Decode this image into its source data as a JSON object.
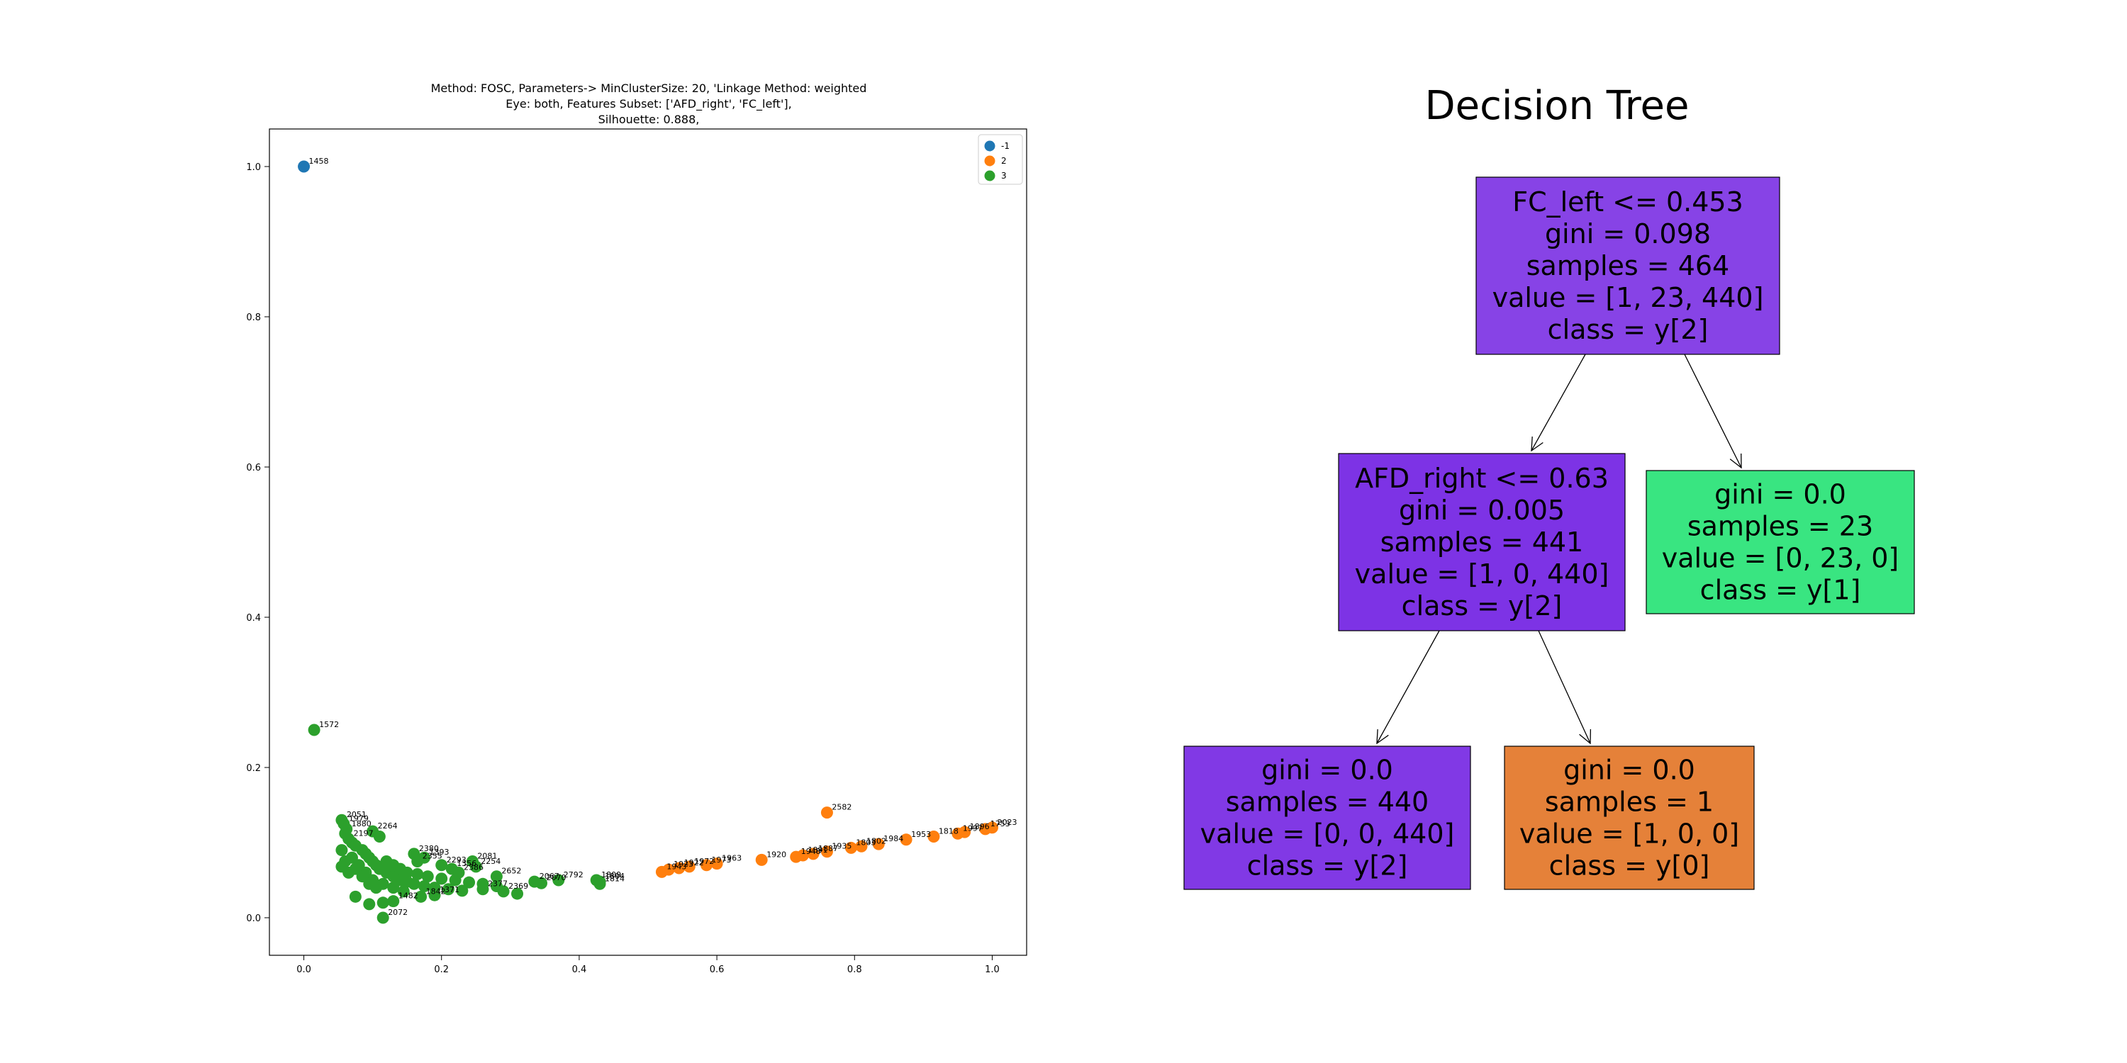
{
  "chart_data": [
    {
      "type": "scatter",
      "title_lines": [
        "Method: FOSC, Parameters-> MinClusterSize: 20, 'Linkage Method: weighted",
        "Eye: both, Features Subset: ['AFD_right', 'FC_left'],",
        "Silhouette: 0.888,"
      ],
      "xlabel": "",
      "ylabel": "",
      "xlim": [
        -0.05,
        1.05
      ],
      "ylim": [
        -0.05,
        1.05
      ],
      "xticks": [
        0.0,
        0.2,
        0.4,
        0.6,
        0.8,
        1.0
      ],
      "yticks": [
        0.0,
        0.2,
        0.4,
        0.6,
        0.8,
        1.0
      ],
      "xtick_labels": [
        "0.0",
        "0.2",
        "0.4",
        "0.6",
        "0.8",
        "1.0"
      ],
      "ytick_labels": [
        "0.0",
        "0.2",
        "0.4",
        "0.6",
        "0.8",
        "1.0"
      ],
      "grid": false,
      "legend_position": "top-right",
      "legend": [
        {
          "label": "-1",
          "color": "#1f77b4"
        },
        {
          "label": "2",
          "color": "#ff7f0e"
        },
        {
          "label": "3",
          "color": "#2ca02c"
        }
      ],
      "series": [
        {
          "name": "-1",
          "color": "#1f77b4",
          "points": [
            {
              "x": 0.0,
              "y": 1.0,
              "label": "1458"
            }
          ]
        },
        {
          "name": "2",
          "color": "#ff7f0e",
          "points": [
            {
              "x": 0.76,
              "y": 0.14,
              "label": "2582"
            },
            {
              "x": 1.0,
              "y": 0.12,
              "label": "2023"
            },
            {
              "x": 0.99,
              "y": 0.118,
              "label": "1753"
            },
            {
              "x": 0.96,
              "y": 0.114,
              "label": "1896"
            },
            {
              "x": 0.95,
              "y": 0.112,
              "label": "1997"
            },
            {
              "x": 0.915,
              "y": 0.108,
              "label": "1818"
            },
            {
              "x": 0.875,
              "y": 0.104,
              "label": "1953"
            },
            {
              "x": 0.835,
              "y": 0.098,
              "label": "1984"
            },
            {
              "x": 0.81,
              "y": 0.095,
              "label": "1802"
            },
            {
              "x": 0.795,
              "y": 0.093,
              "label": "1803"
            },
            {
              "x": 0.76,
              "y": 0.088,
              "label": "1935"
            },
            {
              "x": 0.74,
              "y": 0.085,
              "label": "1887"
            },
            {
              "x": 0.725,
              "y": 0.083,
              "label": "1891"
            },
            {
              "x": 0.715,
              "y": 0.081,
              "label": "1948"
            },
            {
              "x": 0.665,
              "y": 0.077,
              "label": "1920"
            },
            {
              "x": 0.6,
              "y": 0.072,
              "label": "1963"
            },
            {
              "x": 0.585,
              "y": 0.07,
              "label": "1973"
            },
            {
              "x": 0.56,
              "y": 0.068,
              "label": "1972"
            },
            {
              "x": 0.545,
              "y": 0.066,
              "label": "1922"
            },
            {
              "x": 0.53,
              "y": 0.064,
              "label": "1923"
            },
            {
              "x": 0.52,
              "y": 0.061,
              "label": "1943"
            }
          ]
        },
        {
          "name": "3",
          "color": "#2ca02c",
          "points": [
            {
              "x": 0.015,
              "y": 0.25,
              "label": "1572"
            },
            {
              "x": 0.055,
              "y": 0.13,
              "label": "2051"
            },
            {
              "x": 0.058,
              "y": 0.125,
              "label": "1979"
            },
            {
              "x": 0.062,
              "y": 0.118,
              "label": "1880"
            },
            {
              "x": 0.06,
              "y": 0.112,
              "label": ""
            },
            {
              "x": 0.065,
              "y": 0.105,
              "label": "2197"
            },
            {
              "x": 0.07,
              "y": 0.1,
              "label": ""
            },
            {
              "x": 0.075,
              "y": 0.096,
              "label": ""
            },
            {
              "x": 0.1,
              "y": 0.115,
              "label": "2264"
            },
            {
              "x": 0.11,
              "y": 0.108,
              "label": ""
            },
            {
              "x": 0.085,
              "y": 0.09,
              "label": ""
            },
            {
              "x": 0.09,
              "y": 0.085,
              "label": ""
            },
            {
              "x": 0.095,
              "y": 0.08,
              "label": ""
            },
            {
              "x": 0.1,
              "y": 0.075,
              "label": ""
            },
            {
              "x": 0.105,
              "y": 0.07,
              "label": ""
            },
            {
              "x": 0.11,
              "y": 0.065,
              "label": ""
            },
            {
              "x": 0.12,
              "y": 0.06,
              "label": ""
            },
            {
              "x": 0.13,
              "y": 0.055,
              "label": ""
            },
            {
              "x": 0.14,
              "y": 0.05,
              "label": ""
            },
            {
              "x": 0.15,
              "y": 0.048,
              "label": ""
            },
            {
              "x": 0.16,
              "y": 0.045,
              "label": ""
            },
            {
              "x": 0.175,
              "y": 0.042,
              "label": ""
            },
            {
              "x": 0.19,
              "y": 0.04,
              "label": ""
            },
            {
              "x": 0.21,
              "y": 0.038,
              "label": ""
            },
            {
              "x": 0.23,
              "y": 0.036,
              "label": ""
            },
            {
              "x": 0.08,
              "y": 0.07,
              "label": ""
            },
            {
              "x": 0.09,
              "y": 0.06,
              "label": ""
            },
            {
              "x": 0.1,
              "y": 0.05,
              "label": ""
            },
            {
              "x": 0.115,
              "y": 0.045,
              "label": ""
            },
            {
              "x": 0.13,
              "y": 0.04,
              "label": ""
            },
            {
              "x": 0.145,
              "y": 0.035,
              "label": ""
            },
            {
              "x": 0.07,
              "y": 0.08,
              "label": ""
            },
            {
              "x": 0.075,
              "y": 0.065,
              "label": ""
            },
            {
              "x": 0.085,
              "y": 0.055,
              "label": ""
            },
            {
              "x": 0.095,
              "y": 0.045,
              "label": ""
            },
            {
              "x": 0.105,
              "y": 0.04,
              "label": ""
            },
            {
              "x": 0.055,
              "y": 0.09,
              "label": ""
            },
            {
              "x": 0.06,
              "y": 0.075,
              "label": ""
            },
            {
              "x": 0.065,
              "y": 0.06,
              "label": ""
            },
            {
              "x": 0.12,
              "y": 0.075,
              "label": ""
            },
            {
              "x": 0.13,
              "y": 0.07,
              "label": ""
            },
            {
              "x": 0.14,
              "y": 0.065,
              "label": ""
            },
            {
              "x": 0.15,
              "y": 0.06,
              "label": ""
            },
            {
              "x": 0.165,
              "y": 0.058,
              "label": ""
            },
            {
              "x": 0.18,
              "y": 0.055,
              "label": ""
            },
            {
              "x": 0.2,
              "y": 0.052,
              "label": ""
            },
            {
              "x": 0.22,
              "y": 0.05,
              "label": ""
            },
            {
              "x": 0.24,
              "y": 0.047,
              "label": ""
            },
            {
              "x": 0.26,
              "y": 0.045,
              "label": ""
            },
            {
              "x": 0.28,
              "y": 0.042,
              "label": ""
            },
            {
              "x": 0.055,
              "y": 0.068,
              "label": ""
            },
            {
              "x": 0.075,
              "y": 0.028,
              "label": ""
            },
            {
              "x": 0.095,
              "y": 0.018,
              "label": ""
            },
            {
              "x": 0.115,
              "y": 0.02,
              "label": ""
            },
            {
              "x": 0.13,
              "y": 0.022,
              "label": "1482"
            },
            {
              "x": 0.115,
              "y": 0.0,
              "label": "2072"
            },
            {
              "x": 0.17,
              "y": 0.028,
              "label": "1842"
            },
            {
              "x": 0.19,
              "y": 0.03,
              "label": "1371"
            },
            {
              "x": 0.245,
              "y": 0.075,
              "label": "2081"
            },
            {
              "x": 0.25,
              "y": 0.068,
              "label": "2254"
            },
            {
              "x": 0.28,
              "y": 0.055,
              "label": "2652"
            },
            {
              "x": 0.26,
              "y": 0.038,
              "label": "2377"
            },
            {
              "x": 0.29,
              "y": 0.035,
              "label": "2369"
            },
            {
              "x": 0.31,
              "y": 0.032,
              "label": ""
            },
            {
              "x": 0.335,
              "y": 0.048,
              "label": "2067"
            },
            {
              "x": 0.345,
              "y": 0.046,
              "label": "2070"
            },
            {
              "x": 0.37,
              "y": 0.05,
              "label": "2792"
            },
            {
              "x": 0.425,
              "y": 0.05,
              "label": "1809"
            },
            {
              "x": 0.43,
              "y": 0.048,
              "label": "1804"
            },
            {
              "x": 0.43,
              "y": 0.045,
              "label": "1814"
            },
            {
              "x": 0.2,
              "y": 0.07,
              "label": "2293"
            },
            {
              "x": 0.215,
              "y": 0.065,
              "label": "1356"
            },
            {
              "x": 0.225,
              "y": 0.06,
              "label": "2386"
            },
            {
              "x": 0.175,
              "y": 0.08,
              "label": "1393"
            },
            {
              "x": 0.16,
              "y": 0.085,
              "label": "2380"
            },
            {
              "x": 0.165,
              "y": 0.075,
              "label": "2355"
            }
          ]
        }
      ]
    },
    {
      "type": "decision-tree",
      "title": "Decision Tree",
      "nodes": [
        {
          "id": "root",
          "color": "#8743e6",
          "lines": [
            "FC_left <= 0.453",
            "gini = 0.098",
            "samples = 464",
            "value = [1, 23, 440]",
            "class = y[2]"
          ]
        },
        {
          "id": "left",
          "parent": "root",
          "color": "#7d33e5",
          "lines": [
            "AFD_right <= 0.63",
            "gini = 0.005",
            "samples = 441",
            "value = [1, 0, 440]",
            "class = y[2]"
          ]
        },
        {
          "id": "right",
          "parent": "root",
          "color": "#39e581",
          "lines": [
            "gini = 0.0",
            "samples = 23",
            "value = [0, 23, 0]",
            "class = y[1]"
          ]
        },
        {
          "id": "left-left",
          "parent": "left",
          "color": "#8139e5",
          "lines": [
            "gini = 0.0",
            "samples = 440",
            "value = [0, 0, 440]",
            "class = y[2]"
          ]
        },
        {
          "id": "left-right",
          "parent": "left",
          "color": "#e58139",
          "lines": [
            "gini = 0.0",
            "samples = 1",
            "value = [1, 0, 0]",
            "class = y[0]"
          ]
        }
      ]
    }
  ]
}
